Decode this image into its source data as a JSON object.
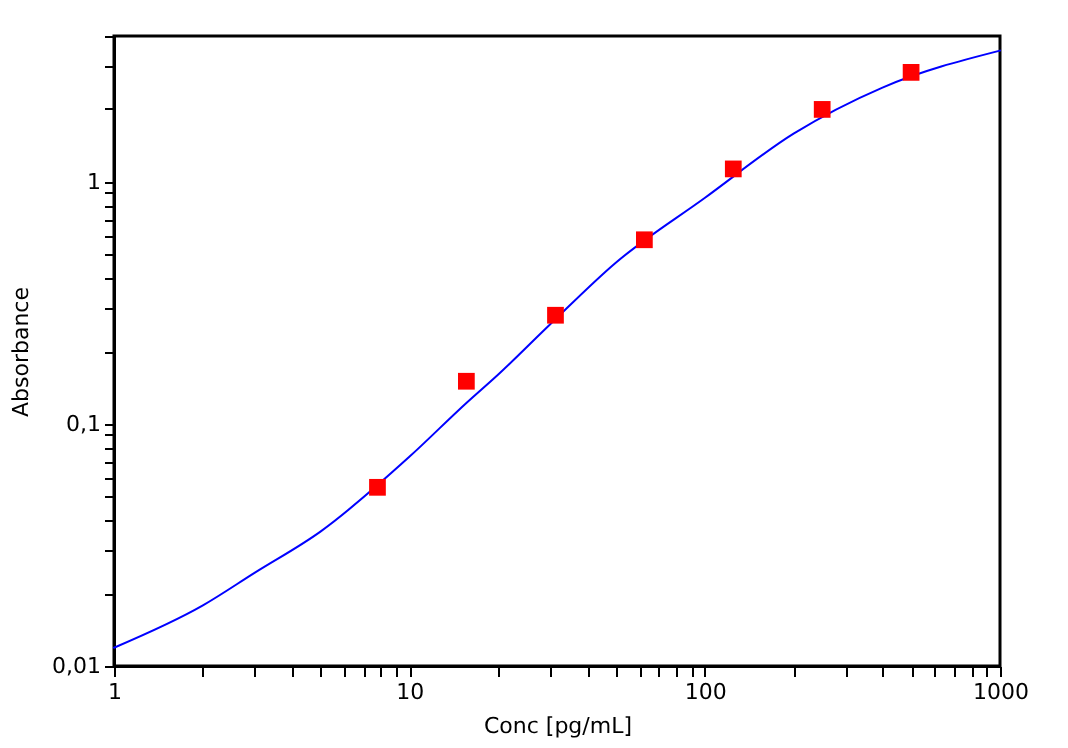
{
  "chart_data": {
    "type": "scatter",
    "xlabel": "Conc [pg/mL]",
    "ylabel": "Absorbance",
    "log": "xy",
    "grid": false,
    "xlim": [
      1,
      1000
    ],
    "ylim": [
      0.01,
      4
    ],
    "xticks": [
      1,
      {
        "value": 2,
        "label": null
      },
      {
        "value": 3,
        "label": null
      },
      {
        "value": 4,
        "label": null
      },
      {
        "value": 5,
        "label": null
      },
      {
        "value": 6,
        "label": null
      },
      {
        "value": 7,
        "label": null
      },
      {
        "value": 8,
        "label": null
      },
      {
        "value": 9,
        "label": null
      },
      10,
      {
        "value": 20,
        "label": null
      },
      {
        "value": 30,
        "label": null
      },
      {
        "value": 40,
        "label": null
      },
      {
        "value": 50,
        "label": null
      },
      {
        "value": 60,
        "label": null
      },
      {
        "value": 70,
        "label": null
      },
      {
        "value": 80,
        "label": null
      },
      {
        "value": 90,
        "label": null
      },
      100,
      {
        "value": 200,
        "label": null
      },
      {
        "value": 300,
        "label": null
      },
      {
        "value": 400,
        "label": null
      },
      {
        "value": 500,
        "label": null
      },
      {
        "value": 600,
        "label": null
      },
      {
        "value": 700,
        "label": null
      },
      {
        "value": 800,
        "label": null
      },
      {
        "value": 900,
        "label": null
      },
      1000
    ],
    "yticks": [
      {
        "value": 0.01,
        "label": "0,01"
      },
      {
        "value": 0.02,
        "label": null
      },
      {
        "value": 0.03,
        "label": null
      },
      {
        "value": 0.04,
        "label": null
      },
      {
        "value": 0.05,
        "label": null
      },
      {
        "value": 0.06,
        "label": null
      },
      {
        "value": 0.07,
        "label": null
      },
      {
        "value": 0.08,
        "label": null
      },
      {
        "value": 0.09,
        "label": null
      },
      {
        "value": 0.1,
        "label": "0,1"
      },
      {
        "value": 0.2,
        "label": null
      },
      {
        "value": 0.3,
        "label": null
      },
      {
        "value": 0.4,
        "label": null
      },
      {
        "value": 0.5,
        "label": null
      },
      {
        "value": 0.6,
        "label": null
      },
      {
        "value": 0.7,
        "label": null
      },
      {
        "value": 0.8,
        "label": null
      },
      {
        "value": 0.9,
        "label": null
      },
      1,
      {
        "value": 2,
        "label": null
      },
      {
        "value": 3,
        "label": null
      },
      {
        "value": 4,
        "label": null
      }
    ],
    "series": [
      {
        "type": "line",
        "marker": "none",
        "color": "#0000ff",
        "x": [
          1,
          2,
          3,
          5,
          10,
          15.6,
          20,
          30,
          50,
          100,
          200,
          400,
          1000
        ],
        "values": [
          0.0119,
          0.0178,
          0.0243,
          0.0359,
          0.0731,
          0.122,
          0.16,
          0.258,
          0.463,
          0.857,
          1.58,
          2.45,
          3.48
        ]
      },
      {
        "marker": "square",
        "color": "#ff0000",
        "x": [
          7.8,
          15.6,
          31.25,
          62.5,
          125,
          250,
          500
        ],
        "values": [
          0.0547,
          0.15,
          0.281,
          0.576,
          1.13,
          1.99,
          2.83
        ]
      }
    ]
  }
}
